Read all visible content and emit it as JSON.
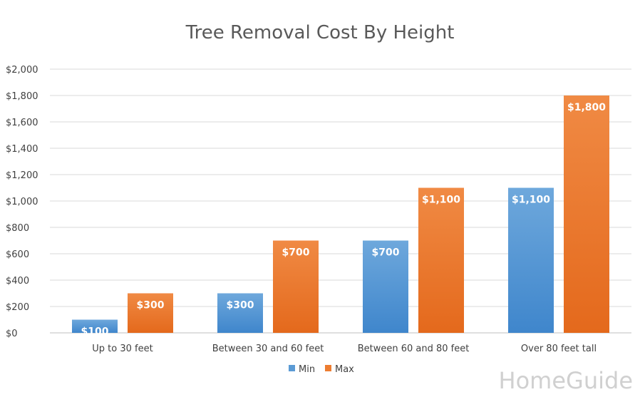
{
  "brand": {
    "name": "HomeGuide"
  },
  "colors": {
    "min": "#5b9bd5",
    "max": "#ed7d31",
    "grid": "#d9d9d9",
    "text": "#404040",
    "title": "#595959"
  },
  "chart_data": {
    "type": "bar",
    "title": "Tree Removal Cost By Height",
    "categories": [
      "Up to 30 feet",
      "Between 30 and 60 feet",
      "Between 60 and 80 feet",
      "Over 80 feet tall"
    ],
    "series": [
      {
        "name": "Min",
        "values": [
          100,
          300,
          700,
          1100
        ],
        "labels": [
          "$100",
          "$300",
          "$700",
          "$1,100"
        ]
      },
      {
        "name": "Max",
        "values": [
          300,
          700,
          1100,
          1800
        ],
        "labels": [
          "$300",
          "$700",
          "$1,100",
          "$1,800"
        ]
      }
    ],
    "ylim": [
      0,
      2000
    ],
    "yticks": [
      0,
      200,
      400,
      600,
      800,
      1000,
      1200,
      1400,
      1600,
      1800,
      2000
    ],
    "ytick_labels": [
      "$0",
      "$200",
      "$400",
      "$600",
      "$800",
      "$1,000",
      "$1,200",
      "$1,400",
      "$1,600",
      "$1,800",
      "$2,000"
    ],
    "grid": true,
    "legend_position": "bottom"
  }
}
